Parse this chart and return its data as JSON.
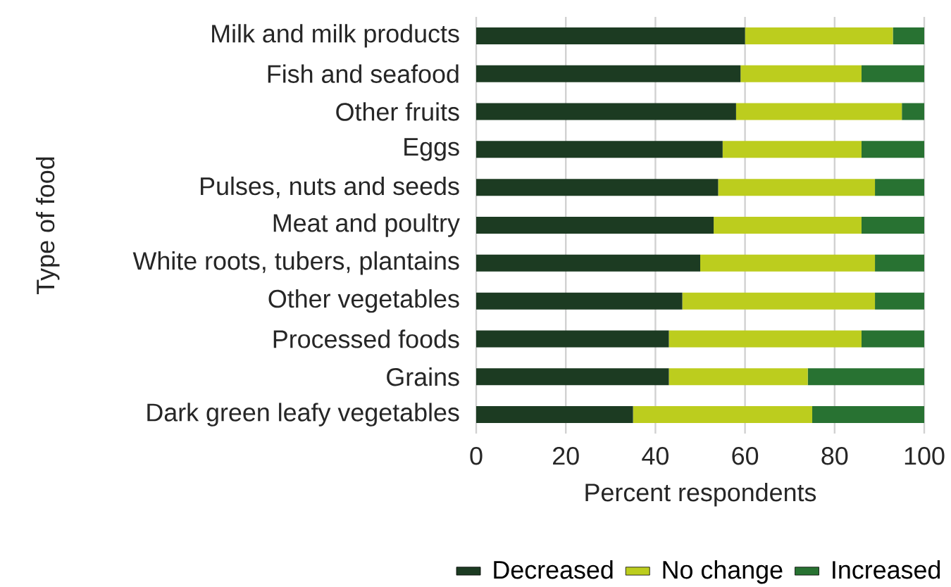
{
  "chart_data": {
    "type": "bar",
    "orientation": "horizontal",
    "stacked": true,
    "xlabel": "Percent respondents",
    "ylabel": "Type of food",
    "categories": [
      "Milk and milk products",
      "Fish and seafood",
      "Other fruits",
      "Eggs",
      "Pulses, nuts and seeds",
      "Meat and poultry",
      "White roots, tubers, plantains",
      "Other vegetables",
      "Processed foods",
      "Grains",
      "Dark green leafy vegetables"
    ],
    "series": [
      {
        "name": "Decreased",
        "color": "#1c3b22",
        "values": [
          60,
          59,
          58,
          55,
          54,
          53,
          50,
          46,
          43,
          43,
          35
        ]
      },
      {
        "name": "No change",
        "color": "#bccd1e",
        "values": [
          33,
          27,
          37,
          31,
          35,
          33,
          39,
          43,
          43,
          31,
          40
        ]
      },
      {
        "name": "Increased",
        "color": "#287232",
        "values": [
          7,
          14,
          5,
          14,
          11,
          14,
          11,
          11,
          14,
          26,
          25
        ]
      }
    ],
    "xlim": [
      0,
      100
    ],
    "xticks": [
      0,
      20,
      40,
      60,
      80,
      100
    ],
    "grid": "x",
    "legend": "bottom"
  }
}
